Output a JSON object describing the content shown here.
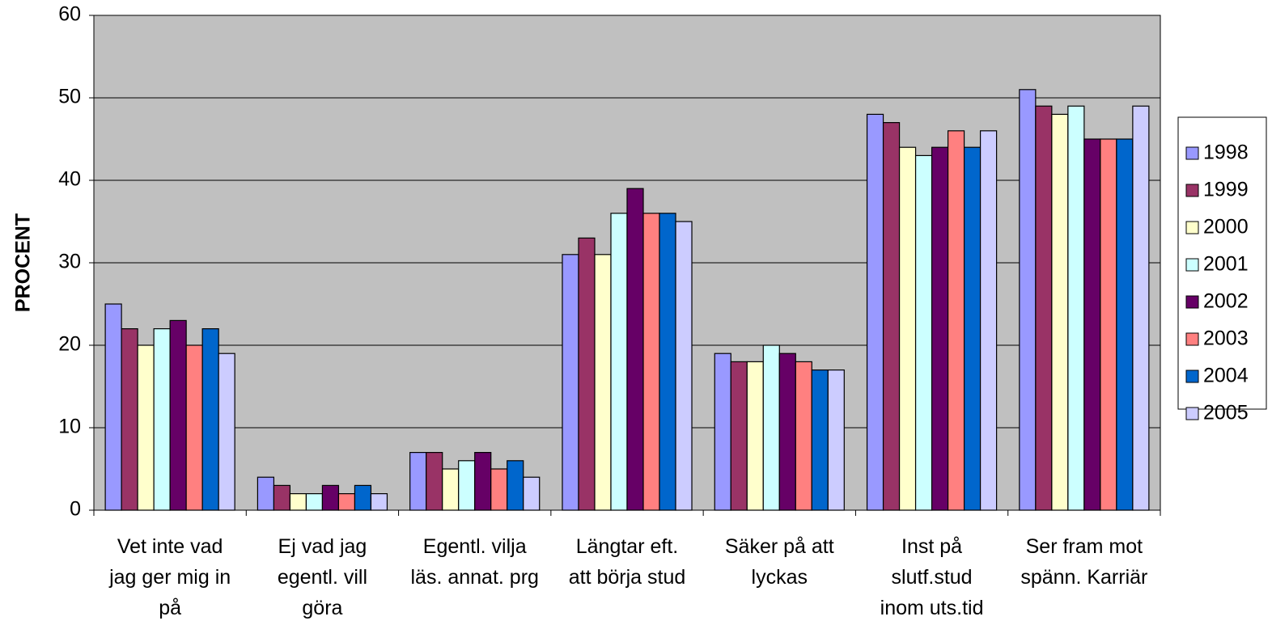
{
  "chart_data": {
    "type": "bar",
    "y_label": "PROCENT",
    "categories": [
      "Vet inte vad jag ger mig in på",
      "Ej vad jag egentl. vill göra",
      "Egentl. vilja läs. annat. prg",
      "Längtar eft. att börja stud",
      "Säker på att lyckas",
      "Inst på slutf.stud inom uts.tid",
      "Ser fram mot spänn. Karriär"
    ],
    "series": [
      {
        "name": "1998",
        "color": "#9999ff",
        "values": [
          25,
          4,
          7,
          31,
          19,
          48,
          51
        ]
      },
      {
        "name": "1999",
        "color": "#993366",
        "values": [
          22,
          3,
          7,
          33,
          18,
          47,
          49
        ]
      },
      {
        "name": "2000",
        "color": "#ffffcc",
        "values": [
          20,
          2,
          5,
          31,
          18,
          44,
          48
        ]
      },
      {
        "name": "2001",
        "color": "#ccffff",
        "values": [
          22,
          2,
          6,
          36,
          20,
          43,
          49
        ]
      },
      {
        "name": "2002",
        "color": "#660066",
        "values": [
          23,
          3,
          7,
          39,
          19,
          44,
          45
        ]
      },
      {
        "name": "2003",
        "color": "#ff8080",
        "values": [
          20,
          2,
          5,
          36,
          18,
          46,
          45
        ]
      },
      {
        "name": "2004",
        "color": "#0066cc",
        "values": [
          22,
          3,
          6,
          36,
          17,
          44,
          45
        ]
      },
      {
        "name": "2005",
        "color": "#ccccff",
        "values": [
          19,
          2,
          4,
          35,
          17,
          46,
          49
        ]
      }
    ],
    "ylim": [
      0,
      60
    ],
    "yticks": [
      0,
      10,
      20,
      30,
      40,
      50,
      60
    ],
    "grid": true,
    "legend": "right"
  }
}
